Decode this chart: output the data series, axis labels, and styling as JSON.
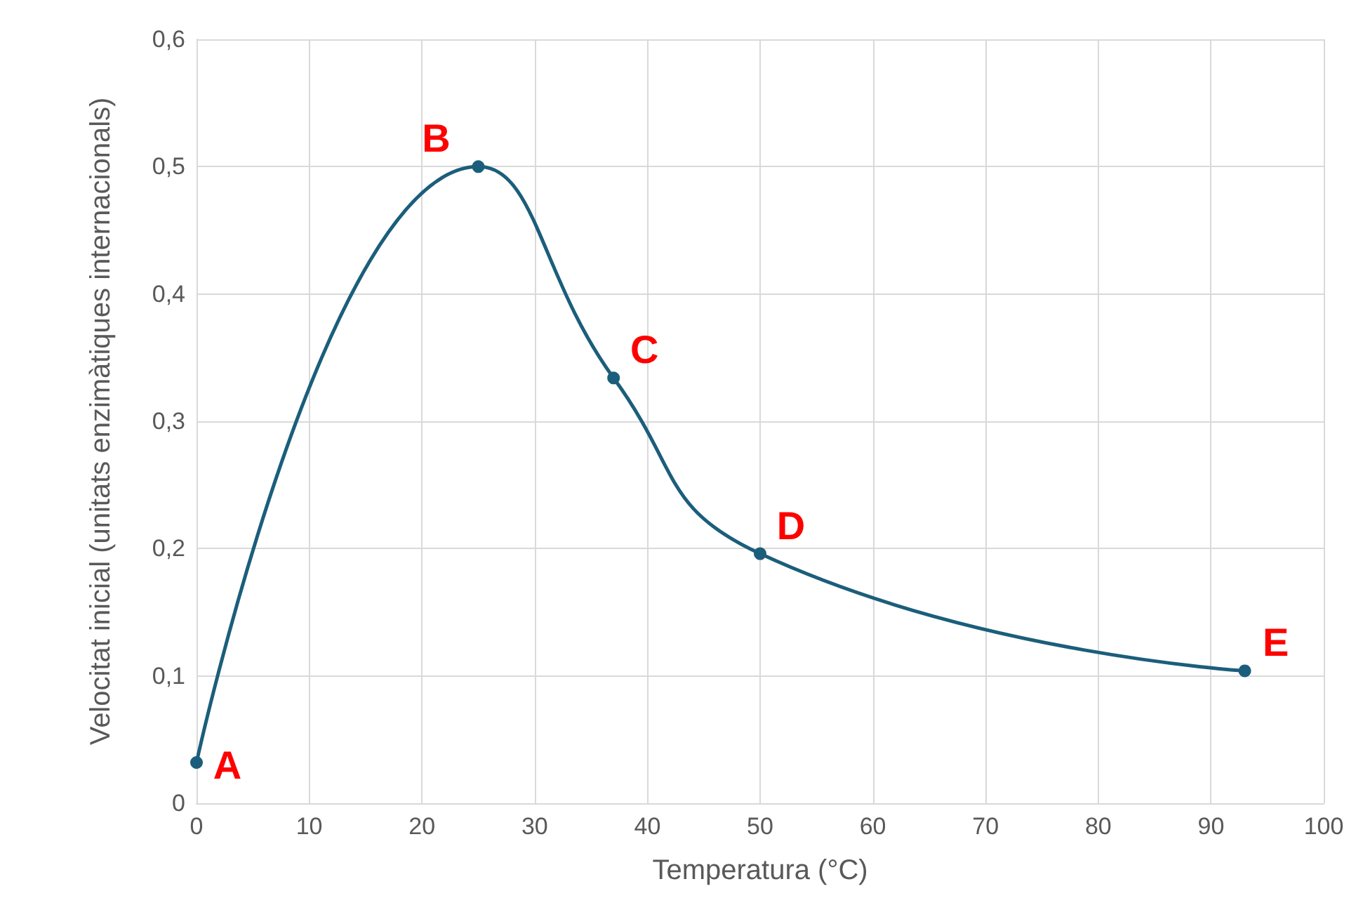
{
  "chart_data": {
    "type": "line",
    "xlabel": "Temperatura (°C)",
    "ylabel": "Velocitat inicial (unitats enzimàtiques internacionals)",
    "x": [
      0,
      25,
      37,
      50,
      93
    ],
    "series": [
      {
        "color": "#1b5e7b",
        "values": [
          0.032,
          0.5,
          0.334,
          0.196,
          0.104
        ]
      }
    ],
    "xlim": [
      0,
      100
    ],
    "xticks": [
      0,
      10,
      20,
      30,
      40,
      50,
      60,
      70,
      80,
      90,
      100
    ],
    "ylim": [
      0,
      0.6
    ],
    "yticks": [
      0,
      {
        "value": 0.1,
        "label": "0,1"
      },
      {
        "value": 0.2,
        "label": "0,2"
      },
      {
        "value": 0.3,
        "label": "0,3"
      },
      {
        "value": 0.4,
        "label": "0,4"
      },
      {
        "value": 0.5,
        "label": "0,5"
      },
      {
        "value": 0.6,
        "label": "0,6"
      }
    ],
    "grid": true,
    "marker": "circle",
    "line_style": "solid",
    "annotations": [
      {
        "text": "A",
        "x": 0,
        "y": 0.032
      },
      {
        "text": "B",
        "x": 25,
        "y": 0.5
      },
      {
        "text": "C",
        "x": 37,
        "y": 0.334
      },
      {
        "text": "D",
        "x": 50,
        "y": 0.196
      },
      {
        "text": "E",
        "x": 93,
        "y": 0.104
      }
    ]
  }
}
